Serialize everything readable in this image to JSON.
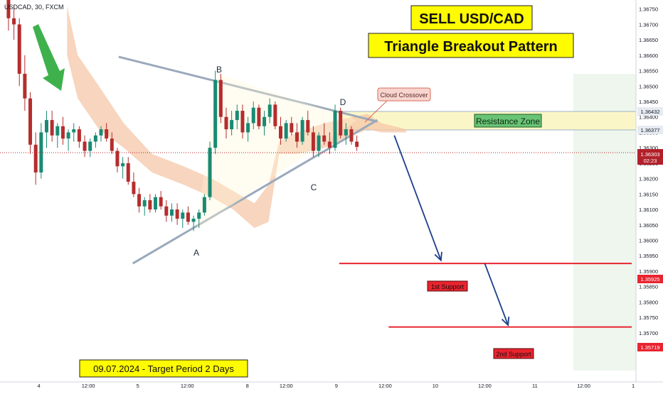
{
  "symbol_label": "USDCAD, 30, FXCM",
  "headline": {
    "title": "SELL USD/CAD",
    "subtitle": "Triangle Breakout Pattern",
    "bg": "#fffb00"
  },
  "footer_note": "09.07.2024 -  Target Period 2 Days",
  "colors": {
    "up": "#1a8a73",
    "down": "#b52d2d",
    "cloud": "#f6c7a8",
    "triangle": "#9aa9bb",
    "support": "#e8242f",
    "arrow": "#1c3f8a",
    "resistance_fill": "#fbf6c8",
    "price_badge": "#b2202a"
  },
  "chart_data": {
    "type": "candlestick",
    "ylim": [
      1.3555,
      1.3677
    ],
    "x_range": [
      0,
      900
    ],
    "y_ticks": [
      "1.36750",
      "1.36700",
      "1.36650",
      "1.36600",
      "1.36550",
      "1.36500",
      "1.36450",
      "1.36400",
      "1.36350",
      "1.36300",
      "1.36250",
      "1.36200",
      "1.36150",
      "1.36100",
      "1.36050",
      "1.36000",
      "1.35950",
      "1.35900",
      "1.35850",
      "1.35800",
      "1.35750",
      "1.35700",
      "1.35650"
    ],
    "x_ticks": [
      {
        "label": "4",
        "t": 55
      },
      {
        "label": "12:00",
        "t": 125
      },
      {
        "label": "5",
        "t": 195
      },
      {
        "label": "12:00",
        "t": 265
      },
      {
        "label": "8",
        "t": 350
      },
      {
        "label": "12:00",
        "t": 405
      },
      {
        "label": "9",
        "t": 476
      },
      {
        "label": "12:00",
        "t": 545
      },
      {
        "label": "10",
        "t": 616
      },
      {
        "label": "12:00",
        "t": 686
      },
      {
        "label": "11",
        "t": 757
      },
      {
        "label": "12:00",
        "t": 826
      },
      {
        "label": "1",
        "t": 896
      }
    ],
    "candles": [
      [
        1.3678,
        1.3682,
        1.3668,
        1.3672
      ],
      [
        1.3672,
        1.3676,
        1.3665,
        1.367
      ],
      [
        1.367,
        1.3672,
        1.365,
        1.3654
      ],
      [
        1.3654,
        1.366,
        1.3642,
        1.3646
      ],
      [
        1.3646,
        1.3648,
        1.3628,
        1.3631
      ],
      [
        1.3631,
        1.3635,
        1.3618,
        1.3622
      ],
      [
        1.3622,
        1.3638,
        1.362,
        1.3635
      ],
      [
        1.3635,
        1.3642,
        1.363,
        1.3639
      ],
      [
        1.3639,
        1.3642,
        1.3632,
        1.3634
      ],
      [
        1.3634,
        1.3638,
        1.363,
        1.3637
      ],
      [
        1.3637,
        1.364,
        1.3631,
        1.3633
      ],
      [
        1.3633,
        1.3636,
        1.3629,
        1.3635
      ],
      [
        1.3635,
        1.3638,
        1.3632,
        1.3636
      ],
      [
        1.3636,
        1.3637,
        1.363,
        1.3632
      ],
      [
        1.3632,
        1.3634,
        1.3627,
        1.3629
      ],
      [
        1.3629,
        1.3633,
        1.3627,
        1.3632
      ],
      [
        1.3632,
        1.3635,
        1.363,
        1.3634
      ],
      [
        1.3634,
        1.3637,
        1.3632,
        1.3636
      ],
      [
        1.3636,
        1.3638,
        1.3632,
        1.3633
      ],
      [
        1.3633,
        1.3635,
        1.3628,
        1.3629
      ],
      [
        1.3629,
        1.363,
        1.3622,
        1.3624
      ],
      [
        1.3624,
        1.3627,
        1.362,
        1.3625
      ],
      [
        1.3625,
        1.3627,
        1.3618,
        1.3619
      ],
      [
        1.3619,
        1.3622,
        1.3614,
        1.3615
      ],
      [
        1.3615,
        1.3617,
        1.3609,
        1.3611
      ],
      [
        1.3611,
        1.3614,
        1.3608,
        1.3613
      ],
      [
        1.3613,
        1.3615,
        1.3609,
        1.361
      ],
      [
        1.361,
        1.3615,
        1.3609,
        1.3614
      ],
      [
        1.3614,
        1.3616,
        1.361,
        1.3611
      ],
      [
        1.3611,
        1.3613,
        1.3606,
        1.3608
      ],
      [
        1.3608,
        1.3612,
        1.3606,
        1.361
      ],
      [
        1.361,
        1.3612,
        1.3605,
        1.3607
      ],
      [
        1.3607,
        1.361,
        1.3604,
        1.3609
      ],
      [
        1.3609,
        1.3611,
        1.3605,
        1.3606
      ],
      [
        1.3606,
        1.3608,
        1.3603,
        1.3607
      ],
      [
        1.3607,
        1.361,
        1.3604,
        1.3609
      ],
      [
        1.3609,
        1.3615,
        1.3608,
        1.3614
      ],
      [
        1.3614,
        1.3632,
        1.3613,
        1.363
      ],
      [
        1.363,
        1.3655,
        1.3628,
        1.3652
      ],
      [
        1.3652,
        1.3654,
        1.3638,
        1.364
      ],
      [
        1.364,
        1.3643,
        1.3633,
        1.3636
      ],
      [
        1.3636,
        1.3642,
        1.3634,
        1.3639
      ],
      [
        1.3639,
        1.3644,
        1.3636,
        1.3642
      ],
      [
        1.3642,
        1.3644,
        1.3633,
        1.3635
      ],
      [
        1.3635,
        1.364,
        1.3632,
        1.3638
      ],
      [
        1.3638,
        1.3645,
        1.3636,
        1.3643
      ],
      [
        1.3643,
        1.3644,
        1.3636,
        1.3637
      ],
      [
        1.3637,
        1.3642,
        1.3634,
        1.364
      ],
      [
        1.364,
        1.3646,
        1.3638,
        1.3644
      ],
      [
        1.3644,
        1.3645,
        1.3636,
        1.3637
      ],
      [
        1.3637,
        1.364,
        1.3631,
        1.3633
      ],
      [
        1.3633,
        1.3639,
        1.3632,
        1.3638
      ],
      [
        1.3638,
        1.364,
        1.3634,
        1.3635
      ],
      [
        1.3635,
        1.3638,
        1.363,
        1.3632
      ],
      [
        1.3632,
        1.364,
        1.3631,
        1.3639
      ],
      [
        1.3639,
        1.3642,
        1.3634,
        1.3635
      ],
      [
        1.3635,
        1.3637,
        1.3627,
        1.3629
      ],
      [
        1.3629,
        1.3635,
        1.3627,
        1.3634
      ],
      [
        1.3634,
        1.3638,
        1.3631,
        1.3632
      ],
      [
        1.3632,
        1.3635,
        1.3628,
        1.363
      ],
      [
        1.363,
        1.3644,
        1.3629,
        1.3642
      ],
      [
        1.3642,
        1.3643,
        1.3633,
        1.3634
      ],
      [
        1.3634,
        1.3638,
        1.3631,
        1.3636
      ],
      [
        1.3636,
        1.3637,
        1.3631,
        1.3632
      ],
      [
        1.3632,
        1.3634,
        1.3629,
        1.36303
      ]
    ]
  },
  "labels": {
    "point_a": "A",
    "point_b": "B",
    "point_c": "C",
    "point_d": "D",
    "cloud_crossover": "Cloud Crossover",
    "resistance_zone": "Resistance Zone",
    "first_support": "1st Support",
    "second_support": "2nd Support"
  },
  "levels": {
    "resistance_top": "1.36432",
    "resistance_bottom": "1.36377",
    "current_price": "1.36303",
    "countdown": "02:23",
    "first_support": "1.35925",
    "second_support": "1.35719"
  }
}
